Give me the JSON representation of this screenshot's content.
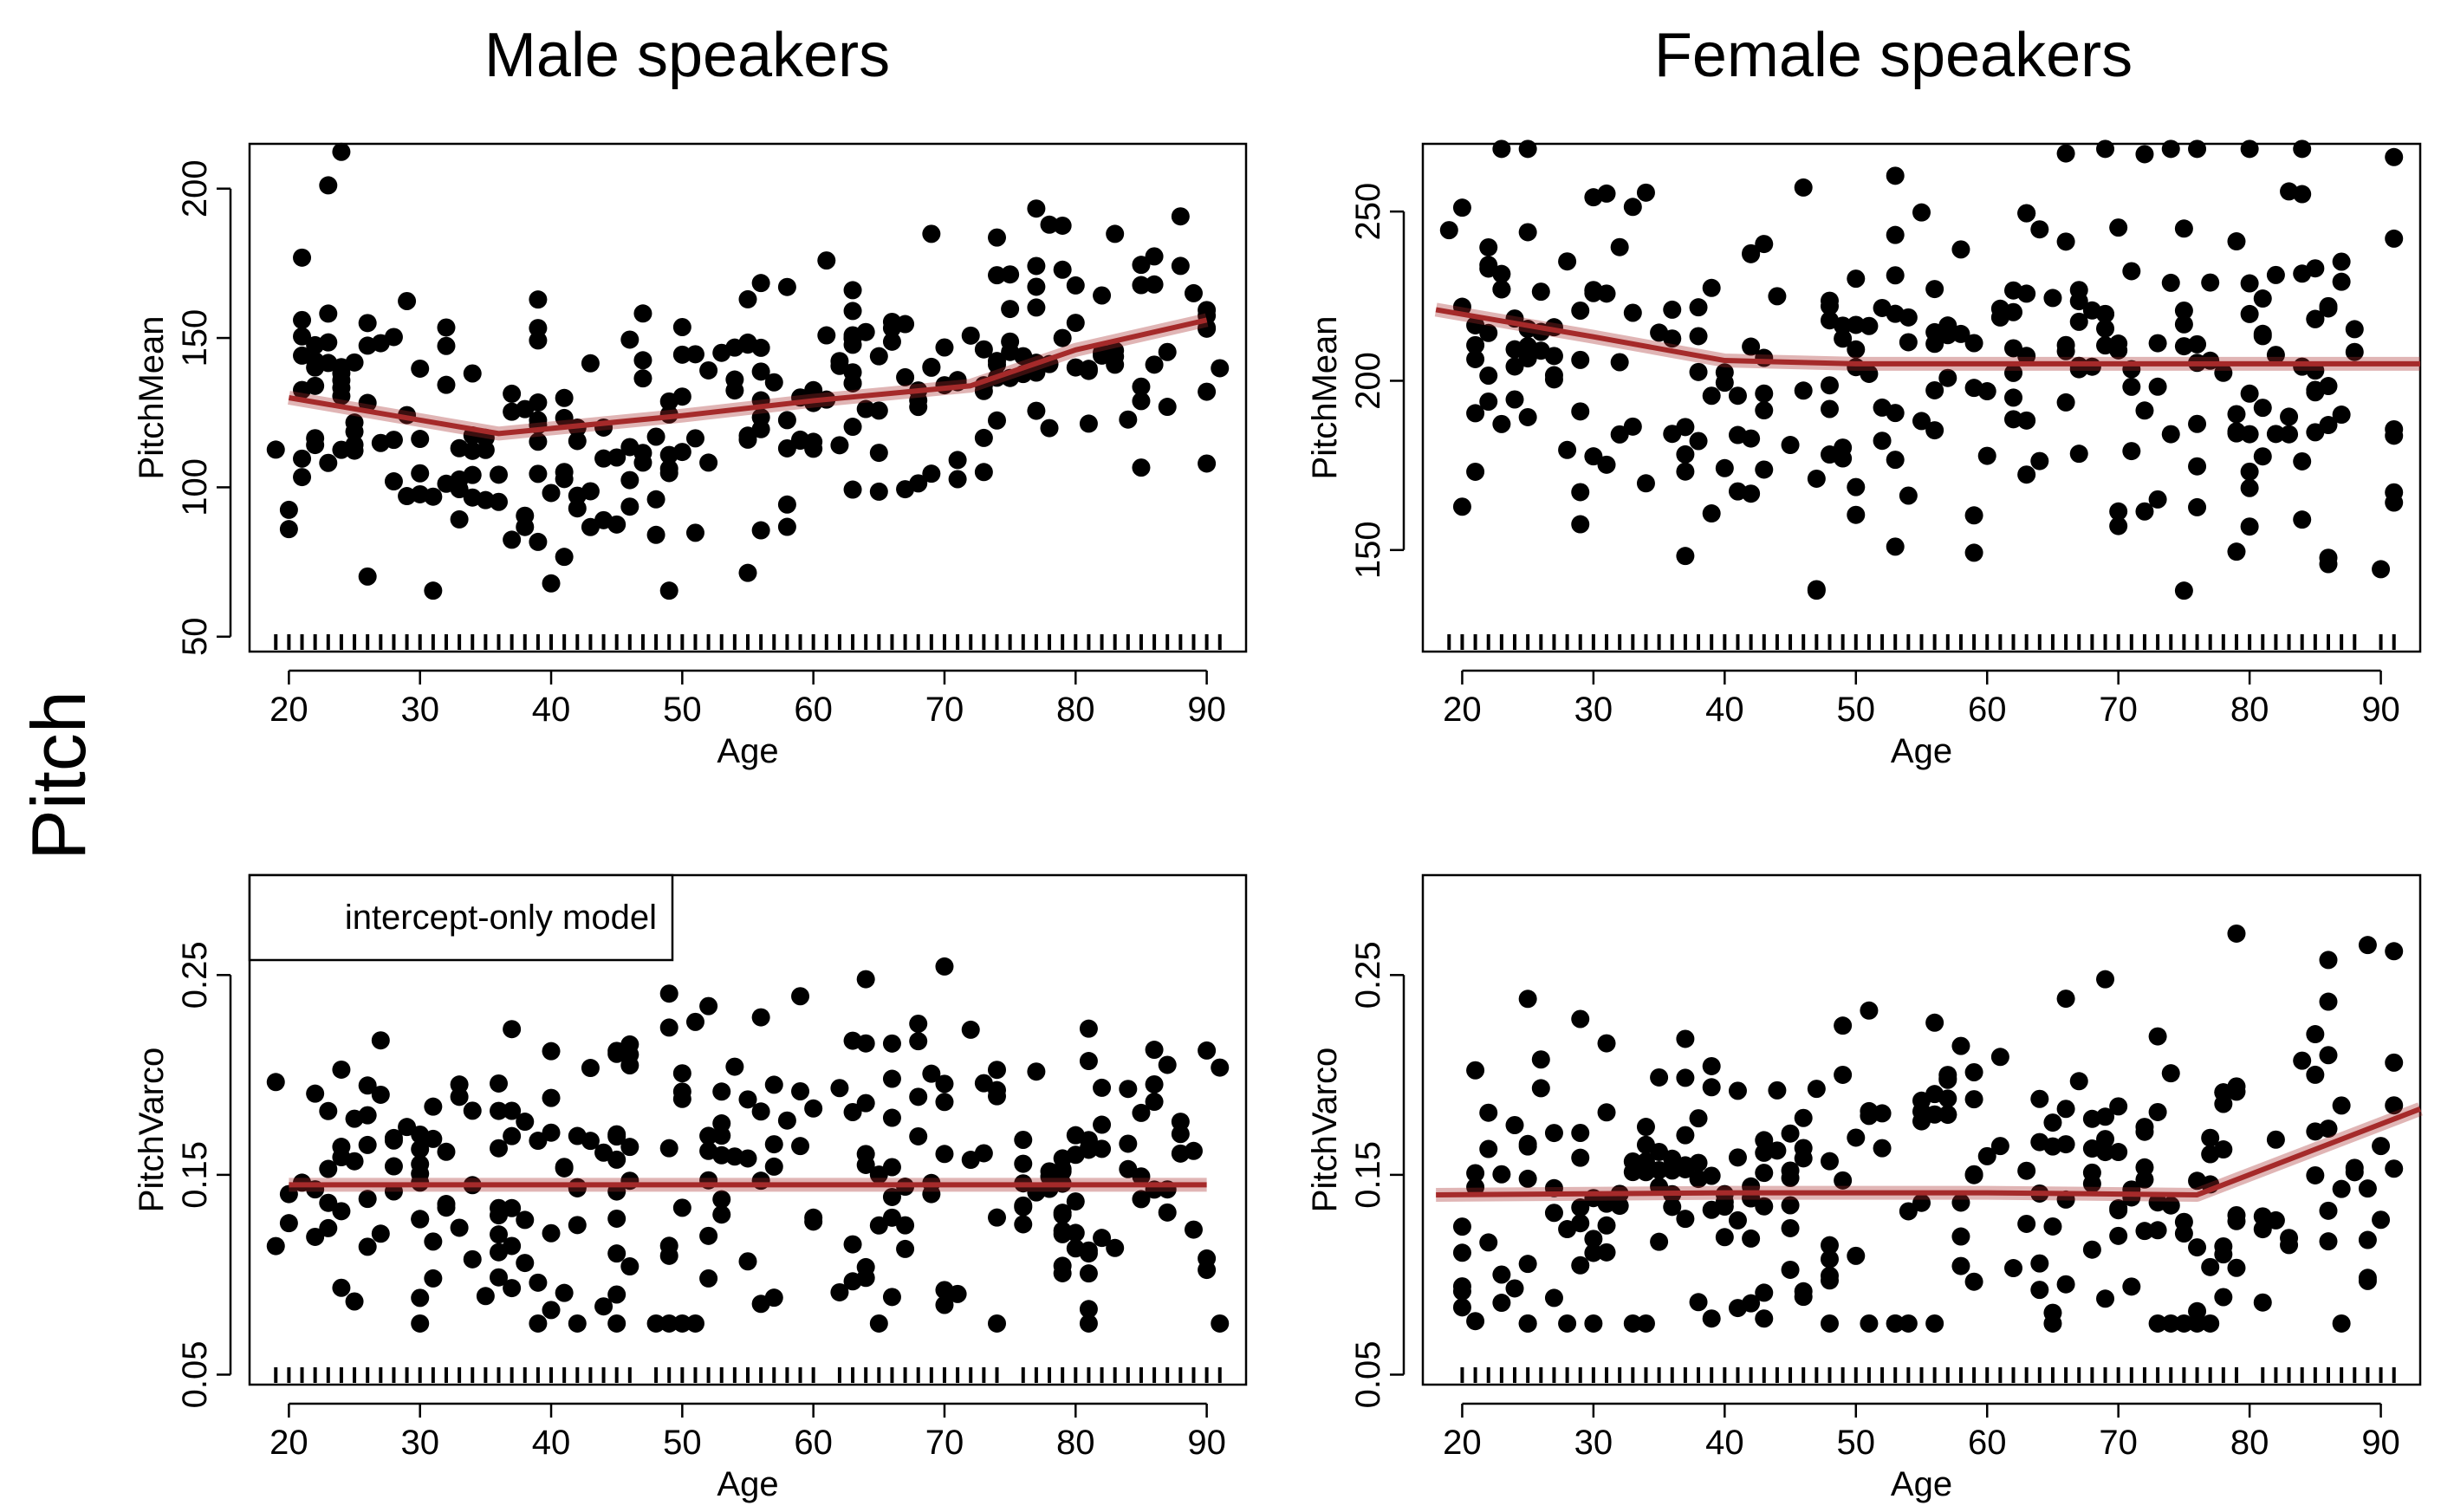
{
  "figure": {
    "column_titles": [
      "Male speakers",
      "Female speakers"
    ],
    "row_label": "Pitch"
  },
  "chart_data": [
    {
      "id": "male-pitchmean",
      "type": "scatter",
      "xlabel": "Age",
      "ylabel": "PitchMean",
      "xlim": [
        17,
        93
      ],
      "ylim": [
        45,
        215
      ],
      "xticks": [
        20,
        30,
        40,
        50,
        60,
        70,
        80,
        90
      ],
      "yticks": [
        50,
        100,
        150,
        200
      ],
      "fit_line": {
        "color": "#a52a2a",
        "x": [
          20,
          36,
          50,
          60,
          72,
          80,
          90
        ],
        "y": [
          130,
          118,
          124,
          129,
          134,
          146,
          156
        ]
      },
      "legend": "",
      "point_color": "#000000"
    },
    {
      "id": "female-pitchmean",
      "type": "scatter",
      "xlabel": "Age",
      "ylabel": "PitchMean",
      "xlim": [
        17,
        93
      ],
      "ylim": [
        120,
        270
      ],
      "xticks": [
        20,
        30,
        40,
        50,
        60,
        70,
        80,
        90
      ],
      "yticks": [
        150,
        200,
        250
      ],
      "fit_line": {
        "color": "#a52a2a",
        "x": [
          18,
          30,
          40,
          50,
          60,
          70,
          80,
          93
        ],
        "y": [
          221,
          213,
          206,
          205,
          205,
          205,
          205,
          205
        ]
      },
      "legend": "",
      "point_color": "#000000"
    },
    {
      "id": "male-pitchvarco",
      "type": "scatter",
      "xlabel": "Age",
      "ylabel": "PitchVarco",
      "xlim": [
        17,
        93
      ],
      "ylim": [
        0.045,
        0.3
      ],
      "xticks": [
        20,
        30,
        40,
        50,
        60,
        70,
        80,
        90
      ],
      "yticks": [
        0.05,
        0.15,
        0.25
      ],
      "ytick_labels": [
        "0.05",
        "0.15",
        "0.25"
      ],
      "fit_line": {
        "color": "#a52a2a",
        "x": [
          20,
          90
        ],
        "y": [
          0.145,
          0.145
        ]
      },
      "legend": "intercept-only model",
      "point_color": "#000000"
    },
    {
      "id": "female-pitchvarco",
      "type": "scatter",
      "xlabel": "Age",
      "ylabel": "PitchVarco",
      "xlim": [
        17,
        93
      ],
      "ylim": [
        0.045,
        0.3
      ],
      "xticks": [
        20,
        30,
        40,
        50,
        60,
        70,
        80,
        90
      ],
      "yticks": [
        0.05,
        0.15,
        0.25
      ],
      "ytick_labels": [
        "0.05",
        "0.15",
        "0.25"
      ],
      "fit_line": {
        "color": "#a52a2a",
        "x": [
          18,
          40,
          60,
          76,
          93
        ],
        "y": [
          0.14,
          0.141,
          0.141,
          0.14,
          0.183
        ]
      },
      "legend": "",
      "point_color": "#000000"
    }
  ]
}
